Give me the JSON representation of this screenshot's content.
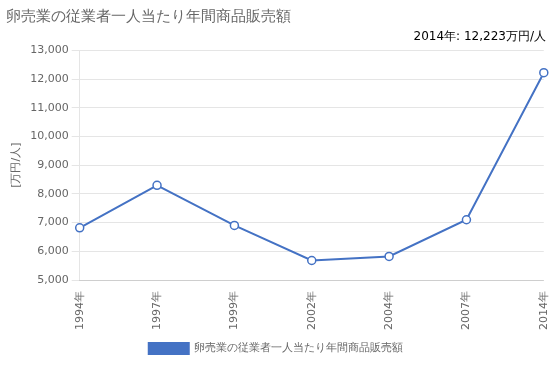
{
  "chart_data": {
    "type": "line",
    "title": "卵売業の従業者一人当たり年間商品販売額",
    "ylabel": "[万円/人]",
    "annotation": "2014年: 12,223万円/人",
    "categories": [
      "1994年",
      "1997年",
      "1999年",
      "2002年",
      "2004年",
      "2007年",
      "2014年"
    ],
    "series": [
      {
        "name": "卵売業の従業者一人当たり年間商品販売額",
        "color": "#4472C4",
        "marker": "circle",
        "values": [
          6820,
          8300,
          6900,
          5680,
          5820,
          7100,
          12223
        ]
      }
    ],
    "ylim": [
      5000,
      13000
    ],
    "yticks": [
      {
        "value": 5000,
        "label": "5,000"
      },
      {
        "value": 6000,
        "label": "6,000"
      },
      {
        "value": 7000,
        "label": "7,000"
      },
      {
        "value": 8000,
        "label": "8,000"
      },
      {
        "value": 9000,
        "label": "9,000"
      },
      {
        "value": 10000,
        "label": "10,000"
      },
      {
        "value": 11000,
        "label": "11,000"
      },
      {
        "value": 12000,
        "label": "12,000"
      },
      {
        "value": 13000,
        "label": "13,000"
      }
    ],
    "grid": true,
    "legend": "bottom"
  }
}
